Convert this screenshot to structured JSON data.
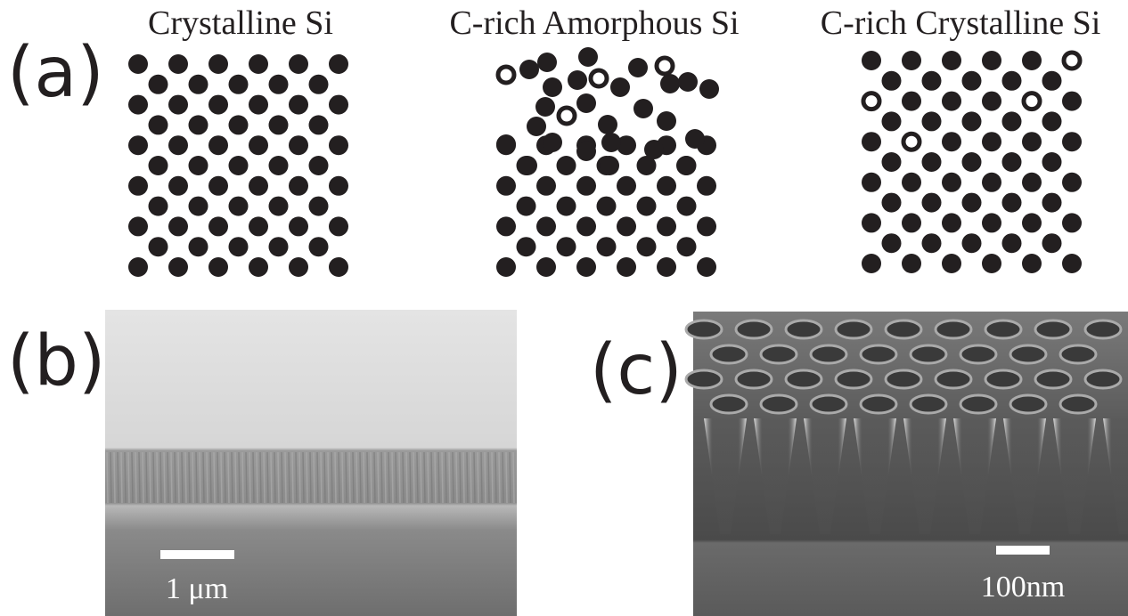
{
  "panels": [
    {
      "label": "(a)",
      "titles": [
        "Crystalline Si",
        "C-rich Amorphous Si",
        "C-rich Crystalline Si"
      ]
    },
    {
      "label": "(b)",
      "scale_bar": "1 μm"
    },
    {
      "label": "(c)",
      "scale_bar": "100nm"
    }
  ]
}
